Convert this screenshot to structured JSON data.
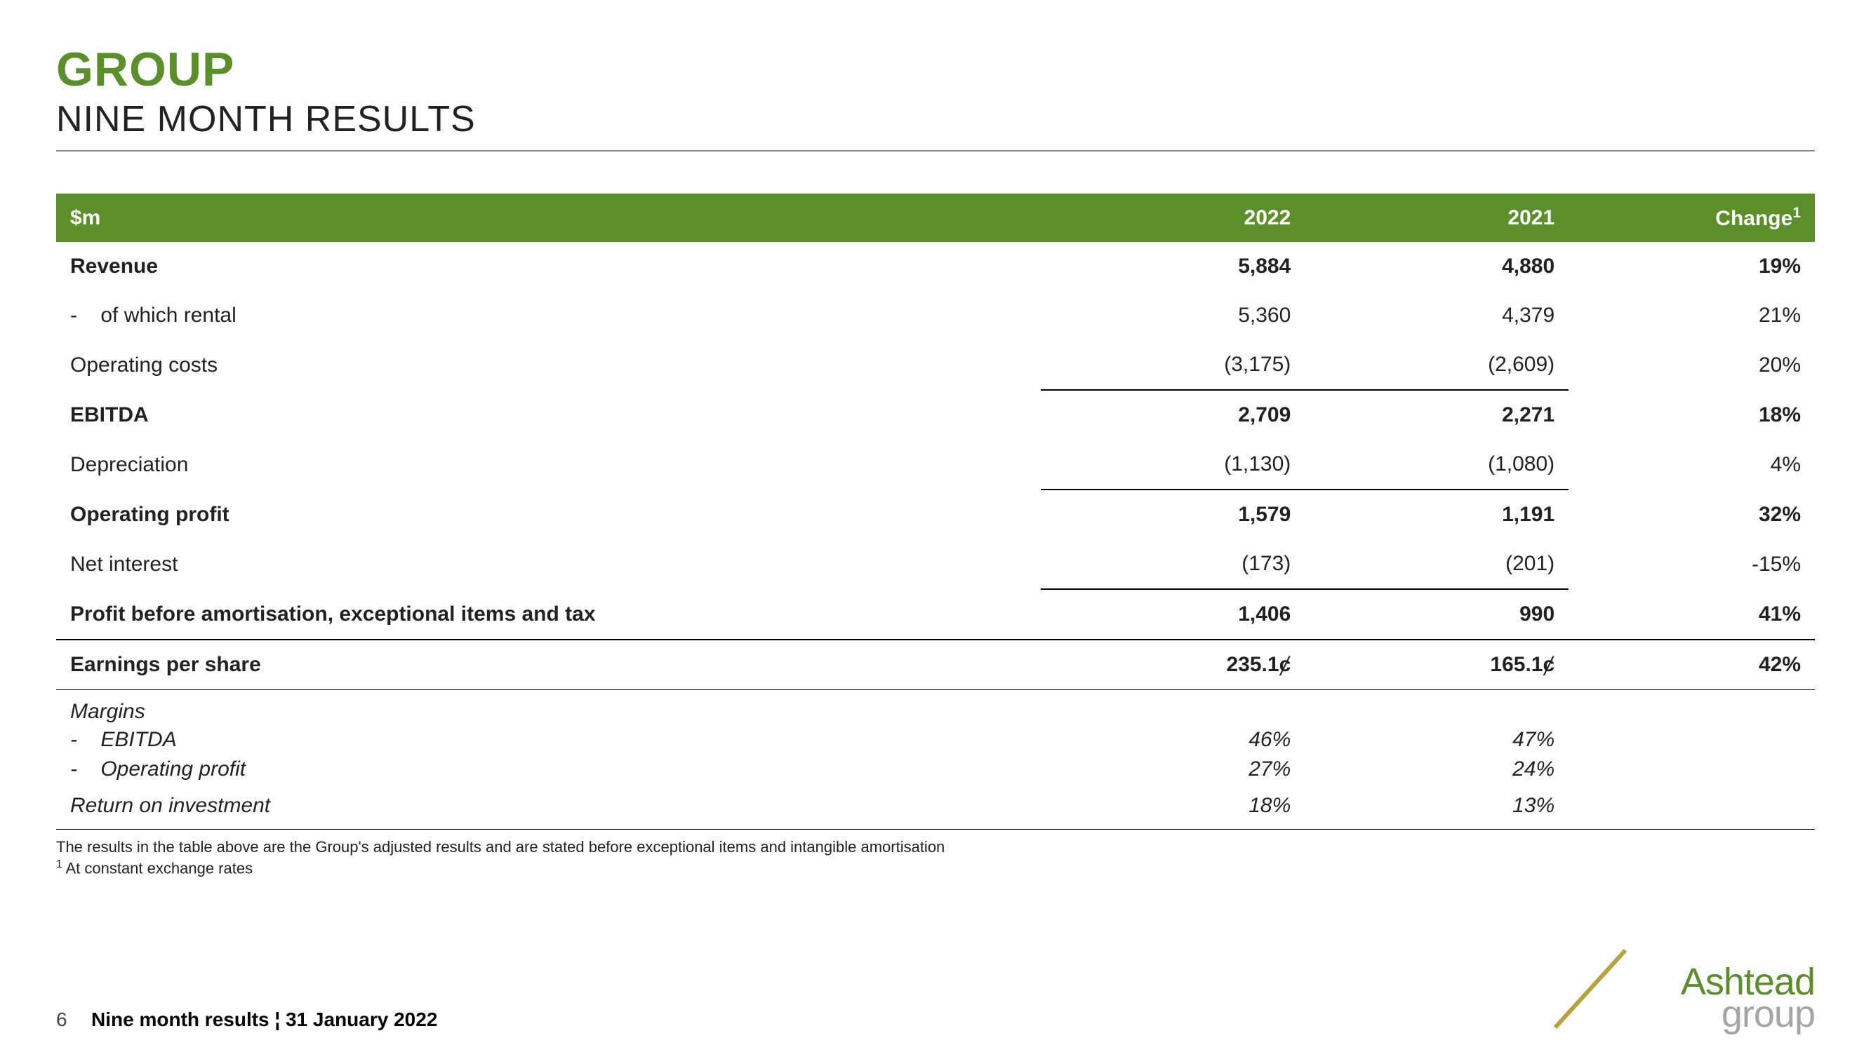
{
  "colors": {
    "brand_green": "#5a8f29",
    "subtitle_black": "#222222",
    "header_bg": "#5a8f29",
    "header_text": "#ffffff",
    "rule": "#888888",
    "logo_green": "#5a8f29",
    "logo_grey": "#a5a5a5",
    "logo_line": "#b7a23e"
  },
  "title": {
    "main": "GROUP",
    "sub": "NINE MONTH RESULTS"
  },
  "table": {
    "header": {
      "c1": "$m",
      "c2": "2022",
      "c3": "2021",
      "c4": "Change",
      "c4_sup": "1"
    },
    "rows": [
      {
        "label": "Revenue",
        "v2022": "5,884",
        "v2021": "4,880",
        "chg": "19%",
        "bold": true
      },
      {
        "label": "of which rental",
        "v2022": "5,360",
        "v2021": "4,379",
        "chg": "21%",
        "indent": true
      },
      {
        "label": "Operating costs",
        "v2022": "(3,175)",
        "v2021": "(2,609)",
        "chg": "20%",
        "line23": true
      },
      {
        "label": "EBITDA",
        "v2022": "2,709",
        "v2021": "2,271",
        "chg": "18%",
        "bold": true
      },
      {
        "label": "Depreciation",
        "v2022": "(1,130)",
        "v2021": "(1,080)",
        "chg": "4%",
        "line23": true
      },
      {
        "label": "Operating profit",
        "v2022": "1,579",
        "v2021": "1,191",
        "chg": "32%",
        "bold": true
      },
      {
        "label": "Net interest",
        "v2022": "(173)",
        "v2021": "(201)",
        "chg": "-15%",
        "line23": true
      },
      {
        "label": "Profit before amortisation, exceptional items and tax",
        "v2022": "1,406",
        "v2021": "990",
        "chg": "41%",
        "bold": true,
        "line_all": true
      },
      {
        "label": "Earnings per share",
        "v2022": "235.1ȼ",
        "v2021": "165.1ȼ",
        "chg": "42%",
        "bold": true,
        "line_all_thin": true
      }
    ],
    "margins_header": "Margins",
    "margins": [
      {
        "label": "EBITDA",
        "v2022": "46%",
        "v2021": "47%"
      },
      {
        "label": "Operating profit",
        "v2022": "27%",
        "v2021": "24%"
      }
    ],
    "roi": {
      "label": "Return on investment",
      "v2022": "18%",
      "v2021": "13%"
    }
  },
  "footnotes": {
    "line1": "The results in the table above are the Group's adjusted results and are stated before exceptional items and intangible amortisation",
    "line2_sup": "1",
    "line2": " At constant exchange rates"
  },
  "footer": {
    "page": "6",
    "text": "Nine month results ¦ 31 January 2022",
    "logo_top": "Ashtead",
    "logo_bot": "group"
  }
}
